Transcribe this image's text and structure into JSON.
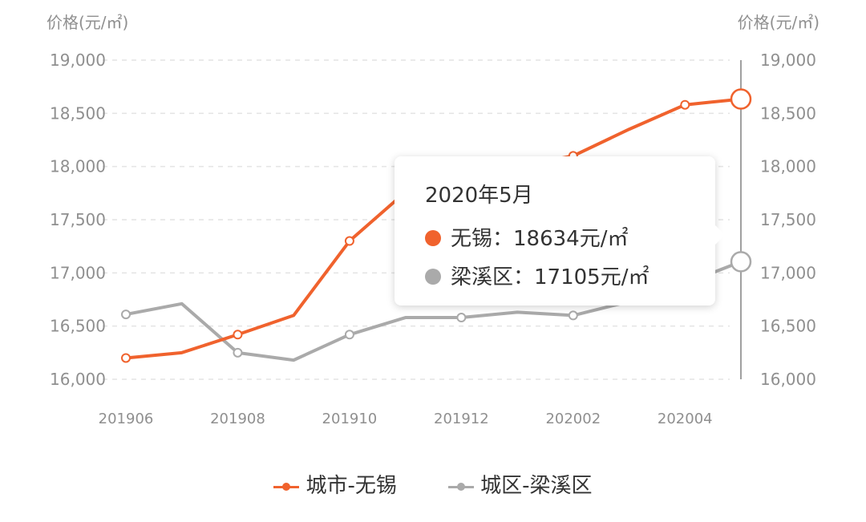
{
  "axis": {
    "left_title": "价格(元/㎡)",
    "right_title": "价格(元/㎡)"
  },
  "chart_data": {
    "type": "line",
    "x": [
      "201906",
      "201907",
      "201908",
      "201909",
      "201910",
      "201911",
      "201912",
      "202001",
      "202002",
      "202003",
      "202004",
      "202005"
    ],
    "x_tick_labels": [
      "201906",
      "201908",
      "201910",
      "201912",
      "202002",
      "202004"
    ],
    "y_ticks": [
      "16,000",
      "16,500",
      "17,000",
      "17,500",
      "18,000",
      "18,500",
      "19,000"
    ],
    "ylim": [
      16000,
      19000
    ],
    "grid": true,
    "legend_position": "bottom",
    "series": [
      {
        "name": "城市-无锡",
        "color": "#f0622d",
        "values": [
          16200,
          16250,
          16420,
          16600,
          17300,
          17760,
          17900,
          18000,
          18100,
          18350,
          18580,
          18634
        ]
      },
      {
        "name": "城区-梁溪区",
        "color": "#aaaaaa",
        "values": [
          16610,
          16710,
          16250,
          16180,
          16420,
          16580,
          16580,
          16630,
          16600,
          16730,
          16900,
          17105
        ]
      }
    ]
  },
  "tooltip": {
    "title": "2020年5月",
    "rows": [
      {
        "label": "无锡：18634元/㎡",
        "color": "#f0622d"
      },
      {
        "label": "梁溪区：17105元/㎡",
        "color": "#aaaaaa"
      }
    ]
  },
  "legend": {
    "items": [
      {
        "label": "城市-无锡",
        "color": "#f0622d"
      },
      {
        "label": "城区-梁溪区",
        "color": "#aaaaaa"
      }
    ]
  }
}
